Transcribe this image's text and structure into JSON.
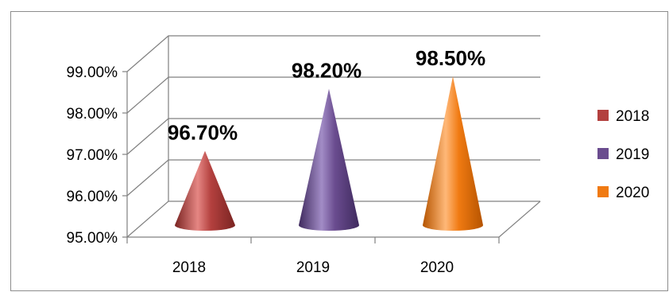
{
  "chart_data": {
    "type": "bar",
    "style": "3d-cone",
    "title": "",
    "xlabel": "",
    "ylabel": "",
    "categories": [
      "2018",
      "2019",
      "2020"
    ],
    "values": [
      96.7,
      98.2,
      98.5
    ],
    "data_labels": [
      "96.70%",
      "98.20%",
      "98.50%"
    ],
    "ylim": [
      95,
      99
    ],
    "yticks": [
      95,
      96,
      97,
      98,
      99
    ],
    "ytick_labels": [
      "95.00%",
      "96.00%",
      "97.00%",
      "98.00%",
      "99.00%"
    ],
    "grid": true,
    "legend": {
      "placement": "right",
      "entries": [
        "2018",
        "2019",
        "2020"
      ]
    },
    "colors": [
      "#B3403E",
      "#6A4C8F",
      "#F07A12"
    ],
    "colors_light": [
      "#E58683",
      "#A28CC6",
      "#FFB878"
    ],
    "colors_dark": [
      "#7A2422",
      "#3F2A5E",
      "#B55400"
    ]
  }
}
